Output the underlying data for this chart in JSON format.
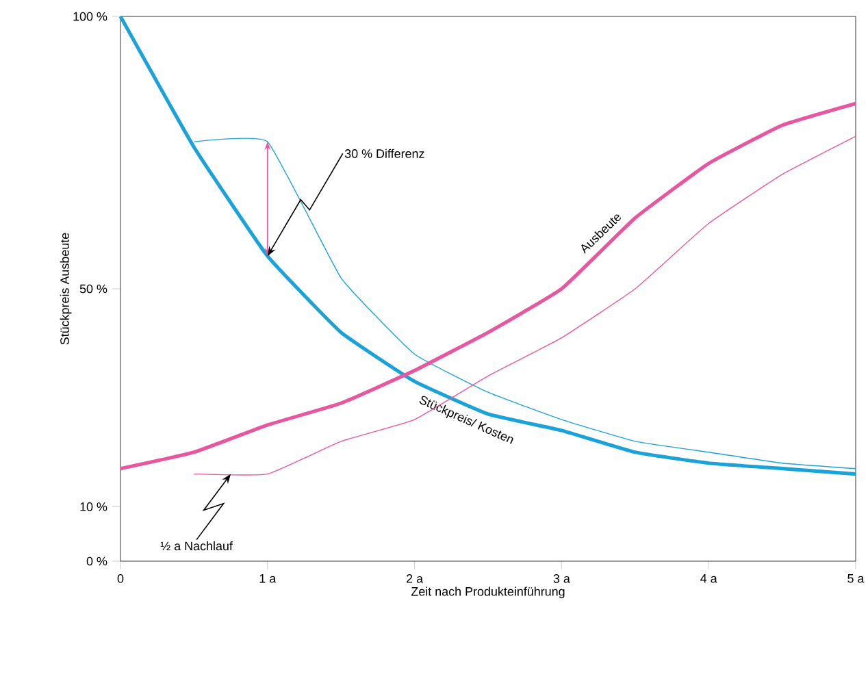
{
  "chart_data": {
    "type": "line",
    "xlabel": "Zeit nach Produkteinführung",
    "ylabel": "Stückpreis Ausbeute",
    "xlim": [
      0,
      5
    ],
    "ylim": [
      0,
      100
    ],
    "xticks": [
      0,
      {
        "value": 1,
        "label": "1 a"
      },
      {
        "value": 2,
        "label": "2 a"
      },
      {
        "value": 3,
        "label": "3 a"
      },
      {
        "value": 4,
        "label": "4 a"
      },
      {
        "value": 5,
        "label": "5 a"
      }
    ],
    "yticks": [
      {
        "value": 0,
        "label": "0 %"
      },
      {
        "value": 10,
        "label": "10 %"
      },
      {
        "value": 50,
        "label": "50 %"
      },
      {
        "value": 100,
        "label": "100 %"
      }
    ],
    "series": [
      {
        "name": "Stückpreis/ Kosten",
        "color": "#1aa3d9",
        "x": [
          0,
          0.5,
          1,
          1.5,
          2,
          2.5,
          3,
          3.5,
          4,
          4.5,
          5
        ],
        "values": [
          100,
          76,
          56,
          42,
          33,
          27,
          24,
          20,
          18,
          17,
          16
        ]
      },
      {
        "color": "#1aa3d9",
        "x": [
          0.5,
          1,
          1.5,
          2,
          2.5,
          3,
          3.5,
          4,
          4.5,
          5
        ],
        "values": [
          77,
          77,
          52,
          38,
          31,
          26,
          22,
          20,
          18,
          17
        ]
      },
      {
        "name": "Ausbeute",
        "color": "#e8569f",
        "x": [
          0,
          0.5,
          1,
          1.5,
          2,
          2.5,
          3,
          3.5,
          4,
          4.5,
          5
        ],
        "values": [
          17,
          20,
          25,
          29,
          35,
          42,
          50,
          63,
          73,
          80,
          84
        ]
      },
      {
        "color": "#e8569f",
        "x": [
          0.5,
          1,
          1.5,
          2,
          2.5,
          3,
          3.5,
          4,
          4.5,
          5
        ],
        "values": [
          16,
          16,
          22,
          26,
          34,
          41,
          50,
          62,
          71,
          78
        ]
      }
    ],
    "annotations": [
      {
        "text": "30 % Differenz",
        "x": 1,
        "y": 56
      },
      {
        "text": "½ a Nachlauf",
        "x": 0.75,
        "y": 16
      }
    ],
    "legend": false,
    "grid": false,
    "marker": "none",
    "line_style": "solid"
  }
}
